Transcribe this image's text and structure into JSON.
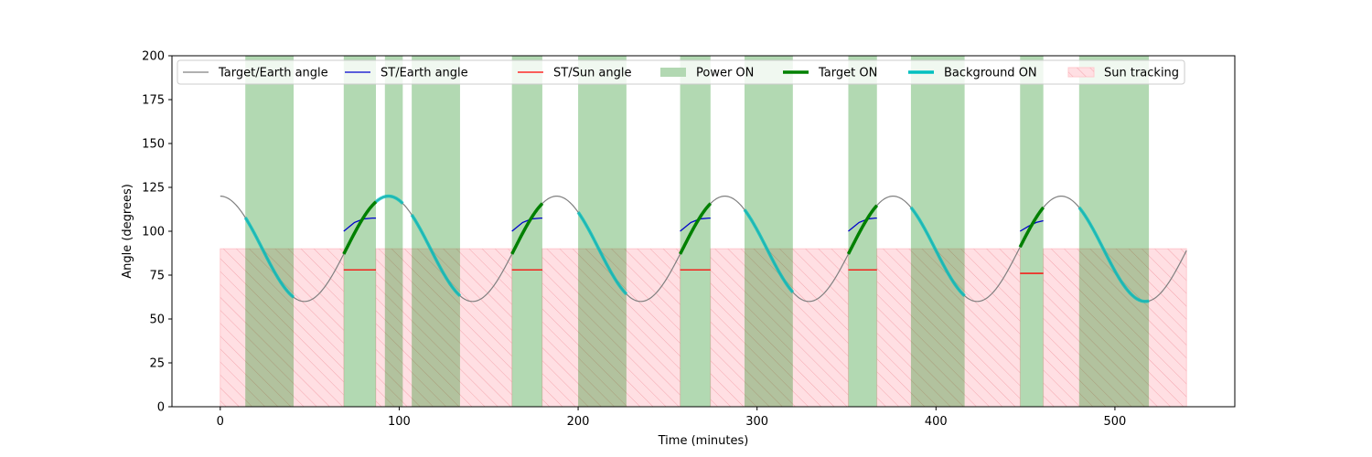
{
  "chart_data": {
    "type": "line",
    "xlabel": "Time (minutes)",
    "ylabel": "Angle (degrees)",
    "xlim": [
      -27,
      567
    ],
    "ylim": [
      0,
      200
    ],
    "xticks": [
      0,
      100,
      200,
      300,
      400,
      500
    ],
    "yticks": [
      0,
      25,
      50,
      75,
      100,
      125,
      150,
      175,
      200
    ],
    "grid": false,
    "legend_placement": "top",
    "legend": [
      {
        "label": "Target/Earth angle",
        "kind": "line",
        "color": "#808080"
      },
      {
        "label": "ST/Earth angle",
        "kind": "line",
        "color": "#0000cc"
      },
      {
        "label": "ST/Sun angle",
        "kind": "line",
        "color": "#ff0000"
      },
      {
        "label": "Power ON",
        "kind": "patch",
        "color": "#b2d8b2"
      },
      {
        "label": "Target ON",
        "kind": "thick",
        "color": "#008000"
      },
      {
        "label": "Background ON",
        "kind": "thick",
        "color": "#00bfbf"
      },
      {
        "label": "Sun tracking",
        "kind": "hatch",
        "color": "#ffdfe3"
      }
    ],
    "target_earth": {
      "center": 90,
      "amplitude": 30,
      "period": 94,
      "phase_x": 0,
      "x_range": [
        0,
        540
      ]
    },
    "power_on": [
      [
        14,
        41
      ],
      [
        69,
        87
      ],
      [
        92,
        102
      ],
      [
        107,
        134
      ],
      [
        163,
        180
      ],
      [
        200,
        227
      ],
      [
        257,
        274
      ],
      [
        293,
        320
      ],
      [
        351,
        367
      ],
      [
        386,
        416
      ],
      [
        447,
        460
      ],
      [
        480,
        519
      ]
    ],
    "sun_tracking": {
      "y": 90,
      "ranges": [
        [
          0,
          69
        ],
        [
          87,
          163
        ],
        [
          180,
          257
        ],
        [
          274,
          351
        ],
        [
          367,
          447
        ],
        [
          460,
          540
        ]
      ]
    },
    "target_on": [
      [
        69,
        87
      ],
      [
        163,
        180
      ],
      [
        257,
        274
      ],
      [
        351,
        367
      ],
      [
        447,
        460
      ]
    ],
    "background_on": [
      [
        14,
        41
      ],
      [
        87,
        92
      ],
      [
        92,
        102
      ],
      [
        107,
        134
      ],
      [
        200,
        227
      ],
      [
        293,
        320
      ],
      [
        386,
        416
      ],
      [
        480,
        519
      ]
    ],
    "st_earth": [
      {
        "x": [
          69,
          75,
          80,
          85,
          87
        ],
        "y": [
          100,
          105,
          107,
          107.5,
          107.5
        ]
      },
      {
        "x": [
          163,
          169,
          174,
          179,
          180
        ],
        "y": [
          100,
          105,
          107,
          107.5,
          107.5
        ]
      },
      {
        "x": [
          257,
          263,
          268,
          273,
          274
        ],
        "y": [
          100,
          105,
          107,
          107.5,
          107.5
        ]
      },
      {
        "x": [
          351,
          357,
          362,
          366,
          367
        ],
        "y": [
          100,
          105,
          107,
          107.5,
          107.5
        ]
      },
      {
        "x": [
          447,
          452,
          456,
          460
        ],
        "y": [
          100,
          103,
          105,
          106
        ]
      }
    ],
    "st_sun": [
      {
        "x": [
          69,
          87
        ],
        "y": [
          78,
          78
        ]
      },
      {
        "x": [
          163,
          180
        ],
        "y": [
          78,
          78
        ]
      },
      {
        "x": [
          257,
          274
        ],
        "y": [
          78,
          78
        ]
      },
      {
        "x": [
          351,
          367
        ],
        "y": [
          78,
          78
        ]
      },
      {
        "x": [
          447,
          460
        ],
        "y": [
          76,
          76
        ]
      }
    ]
  }
}
